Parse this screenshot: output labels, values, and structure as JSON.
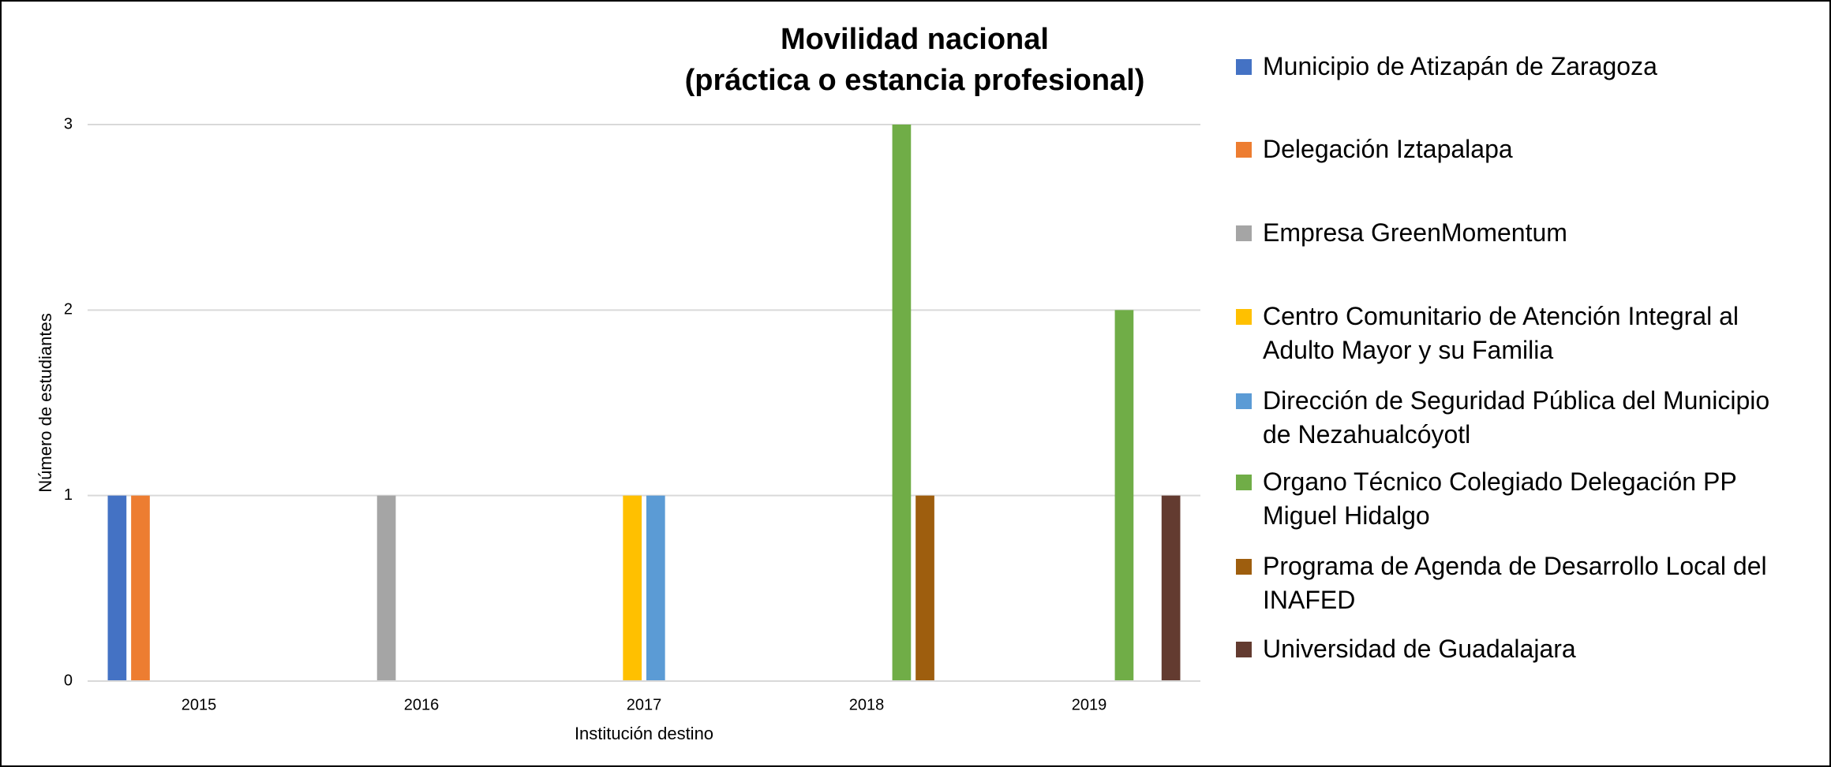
{
  "chart_data": {
    "type": "bar",
    "title": "Movilidad nacional",
    "subtitle": "(práctica o estancia profesional)",
    "x_label": "Institución destino",
    "y_label": "Número de estudiantes",
    "categories": [
      "2015",
      "2016",
      "2017",
      "2018",
      "2019"
    ],
    "series": [
      {
        "name": "Municipio de Atizapán de Zaragoza",
        "color": "#4472c4",
        "values": [
          1,
          null,
          null,
          null,
          null
        ]
      },
      {
        "name": "Delegación Iztapalapa",
        "color": "#ed7d31",
        "values": [
          1,
          null,
          null,
          null,
          null
        ]
      },
      {
        "name": "Empresa GreenMomentum",
        "color": "#a5a5a5",
        "values": [
          null,
          1,
          null,
          null,
          null
        ]
      },
      {
        "name": "Centro Comunitario de Atención Integral al Adulto Mayor y su Familia",
        "color": "#ffc000",
        "values": [
          null,
          null,
          1,
          null,
          null
        ]
      },
      {
        "name": "Dirección de Seguridad Pública del Municipio de Nezahualcóyotl",
        "color": "#5b9bd5",
        "values": [
          null,
          null,
          1,
          null,
          null
        ]
      },
      {
        "name": "Organo Técnico Colegiado Delegación PP Miguel Hidalgo",
        "color": "#70ad47",
        "values": [
          null,
          null,
          null,
          3,
          2
        ]
      },
      {
        "name": "Programa de Agenda de Desarrollo Local del INAFED",
        "color": "#9e5e0e",
        "values": [
          null,
          null,
          null,
          1,
          null
        ]
      },
      {
        "name": "Universidad de Guadalajara",
        "color": "#633b30",
        "values": [
          null,
          null,
          null,
          null,
          1
        ]
      }
    ],
    "ylim": [
      0,
      3
    ],
    "yticks": [
      0,
      1,
      2,
      3
    ],
    "grid": true,
    "legend": "right"
  }
}
